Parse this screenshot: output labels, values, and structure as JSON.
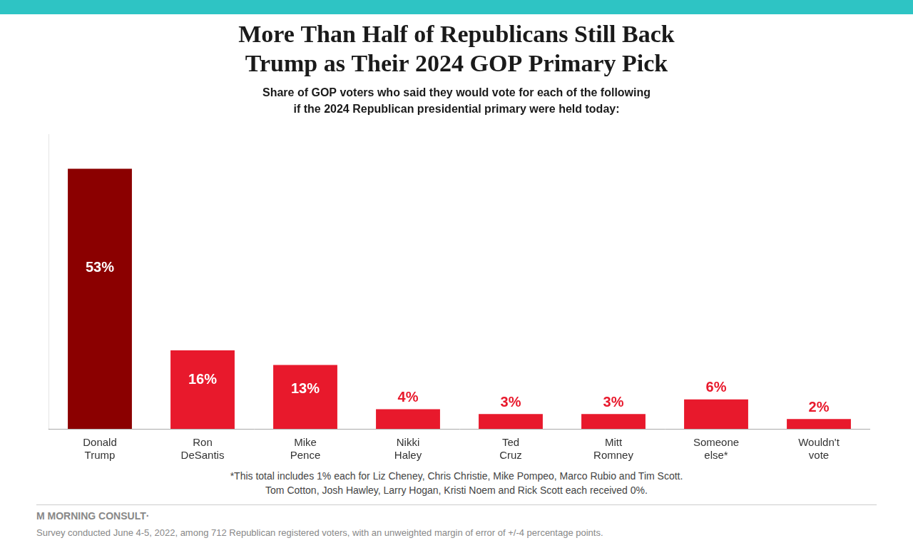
{
  "chart_data": {
    "type": "bar",
    "title": "More Than Half of Republicans Still Back\nTrump as Their 2024 GOP Primary Pick",
    "subtitle": "Share of GOP voters who said they would vote for each of the following\nif the 2024 Republican presidential primary were held today:",
    "categories": [
      "Donald\nTrump",
      "Ron\nDeSantis",
      "Mike\nPence",
      "Nikki\nHaley",
      "Ted\nCruz",
      "Mitt\nRomney",
      "Someone\nelse*",
      "Wouldn't\nvote"
    ],
    "values": [
      53,
      16,
      13,
      4,
      3,
      3,
      6,
      2
    ],
    "value_labels": [
      "53%",
      "16%",
      "13%",
      "4%",
      "3%",
      "3%",
      "6%",
      "2%"
    ],
    "colors": [
      "#8B0000",
      "#E8192C",
      "#E8192C",
      "#E8192C",
      "#E8192C",
      "#E8192C",
      "#E8192C",
      "#E8192C"
    ],
    "data_labels": true,
    "ylim": [
      0,
      60
    ],
    "grid": false,
    "tick_labels": "x",
    "annotations": [
      "*This total includes 1% each for Liz Cheney, Chris Christie, Mike Pompeo, Marco Rubio and Tim Scott.",
      "Tom Cotton, Josh Hawley, Larry Hogan, Kristi Noem and Rick Scott each received 0%.",
      "Μ MORNING CONSULT·",
      "Survey conducted June 4-5, 2022, among 712 Republican registered voters, with an unweighted margin of error of +/-4 percentage points."
    ]
  }
}
